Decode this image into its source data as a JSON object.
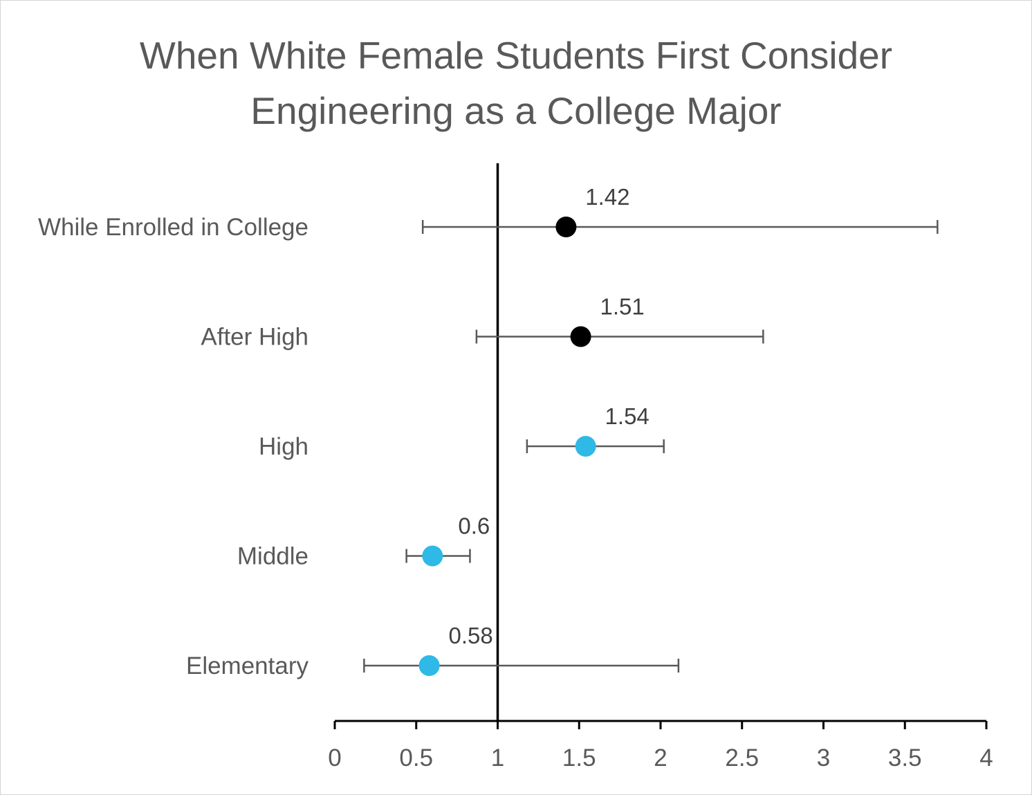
{
  "chart_data": {
    "type": "scatter",
    "title_lines": [
      "When White Female Students First Consider",
      "Engineering as a College Major"
    ],
    "title": "When White Female Students First Consider Engineering as a College Major",
    "xlabel": "",
    "ylabel": "",
    "xlim": [
      0,
      4
    ],
    "x_ticks": [
      "0",
      "0.5",
      "1",
      "1.5",
      "2",
      "2.5",
      "3",
      "3.5",
      "4"
    ],
    "x_tick_values": [
      0,
      0.5,
      1,
      1.5,
      2,
      2.5,
      3,
      3.5,
      4
    ],
    "reference_line_x": 1,
    "grid": false,
    "legend": "none",
    "colors": {
      "black_point": "#000000",
      "blue_point": "#2fb9e6",
      "error_bar": "#595959",
      "axis": "#000000"
    },
    "points": [
      {
        "category": "While Enrolled in College",
        "value": 1.42,
        "label": "1.42",
        "ci_low": 0.54,
        "ci_high": 3.7,
        "color": "#000000"
      },
      {
        "category": "After High",
        "value": 1.51,
        "label": "1.51",
        "ci_low": 0.87,
        "ci_high": 2.63,
        "color": "#000000"
      },
      {
        "category": "High",
        "value": 1.54,
        "label": "1.54",
        "ci_low": 1.18,
        "ci_high": 2.02,
        "color": "#2fb9e6"
      },
      {
        "category": "Middle",
        "value": 0.6,
        "label": "0.6",
        "ci_low": 0.44,
        "ci_high": 0.83,
        "color": "#2fb9e6"
      },
      {
        "category": "Elementary",
        "value": 0.58,
        "label": "0.58",
        "ci_low": 0.18,
        "ci_high": 2.11,
        "color": "#2fb9e6"
      }
    ]
  }
}
